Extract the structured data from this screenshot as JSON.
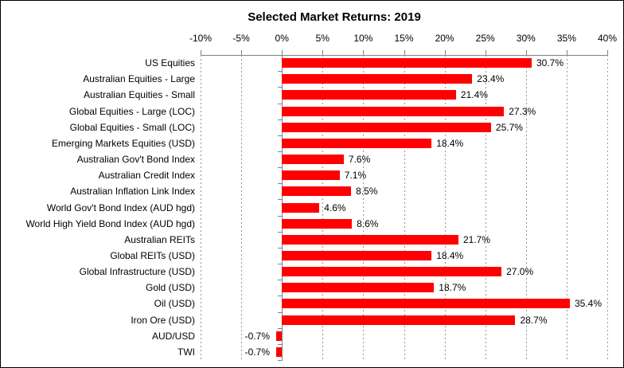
{
  "title": "Selected Market Returns: 2019",
  "colors": {
    "bar": "#ff0000",
    "axis": "#808080",
    "gridline": "#969696",
    "text": "#000000",
    "background": "#ffffff",
    "border": "#000000"
  },
  "chart_data": {
    "type": "bar",
    "orientation": "horizontal",
    "title": "Selected Market Returns: 2019",
    "categories": [
      "US Equities",
      "Australian Equities - Large",
      "Australian Equities - Small",
      "Global Equities - Large (LOC)",
      "Global Equities - Small (LOC)",
      "Emerging Markets Equities (USD)",
      "Australian Gov't Bond Index",
      "Australian Credit Index",
      "Australian Inflation Link Index",
      "World Gov't Bond Index (AUD hgd)",
      "World High Yield Bond Index (AUD hgd)",
      "Australian REITs",
      "Global REITs (USD)",
      "Global Infrastructure (USD)",
      "Gold (USD)",
      "Oil (USD)",
      "Iron Ore (USD)",
      "AUD/USD",
      "TWI"
    ],
    "values": [
      30.7,
      23.4,
      21.4,
      27.3,
      25.7,
      18.4,
      7.6,
      7.1,
      8.5,
      4.6,
      8.6,
      21.7,
      18.4,
      27.0,
      18.7,
      35.4,
      28.7,
      -0.7,
      -0.7
    ],
    "value_labels": [
      "30.7%",
      "23.4%",
      "21.4%",
      "27.3%",
      "25.7%",
      "18.4%",
      "7.6%",
      "7.1%",
      "8.5%",
      "4.6%",
      "8.6%",
      "21.7%",
      "18.4%",
      "27.0%",
      "18.7%",
      "35.4%",
      "28.7%",
      "-0.7%",
      "-0.7%"
    ],
    "axis": {
      "position": "top",
      "min": -10,
      "max": 40,
      "step": 5,
      "unit": "%",
      "tick_labels": [
        "-10%",
        "-5%",
        "0%",
        "5%",
        "10%",
        "15%",
        "20%",
        "25%",
        "30%",
        "35%",
        "40%"
      ]
    },
    "grid": true,
    "legend": false
  }
}
